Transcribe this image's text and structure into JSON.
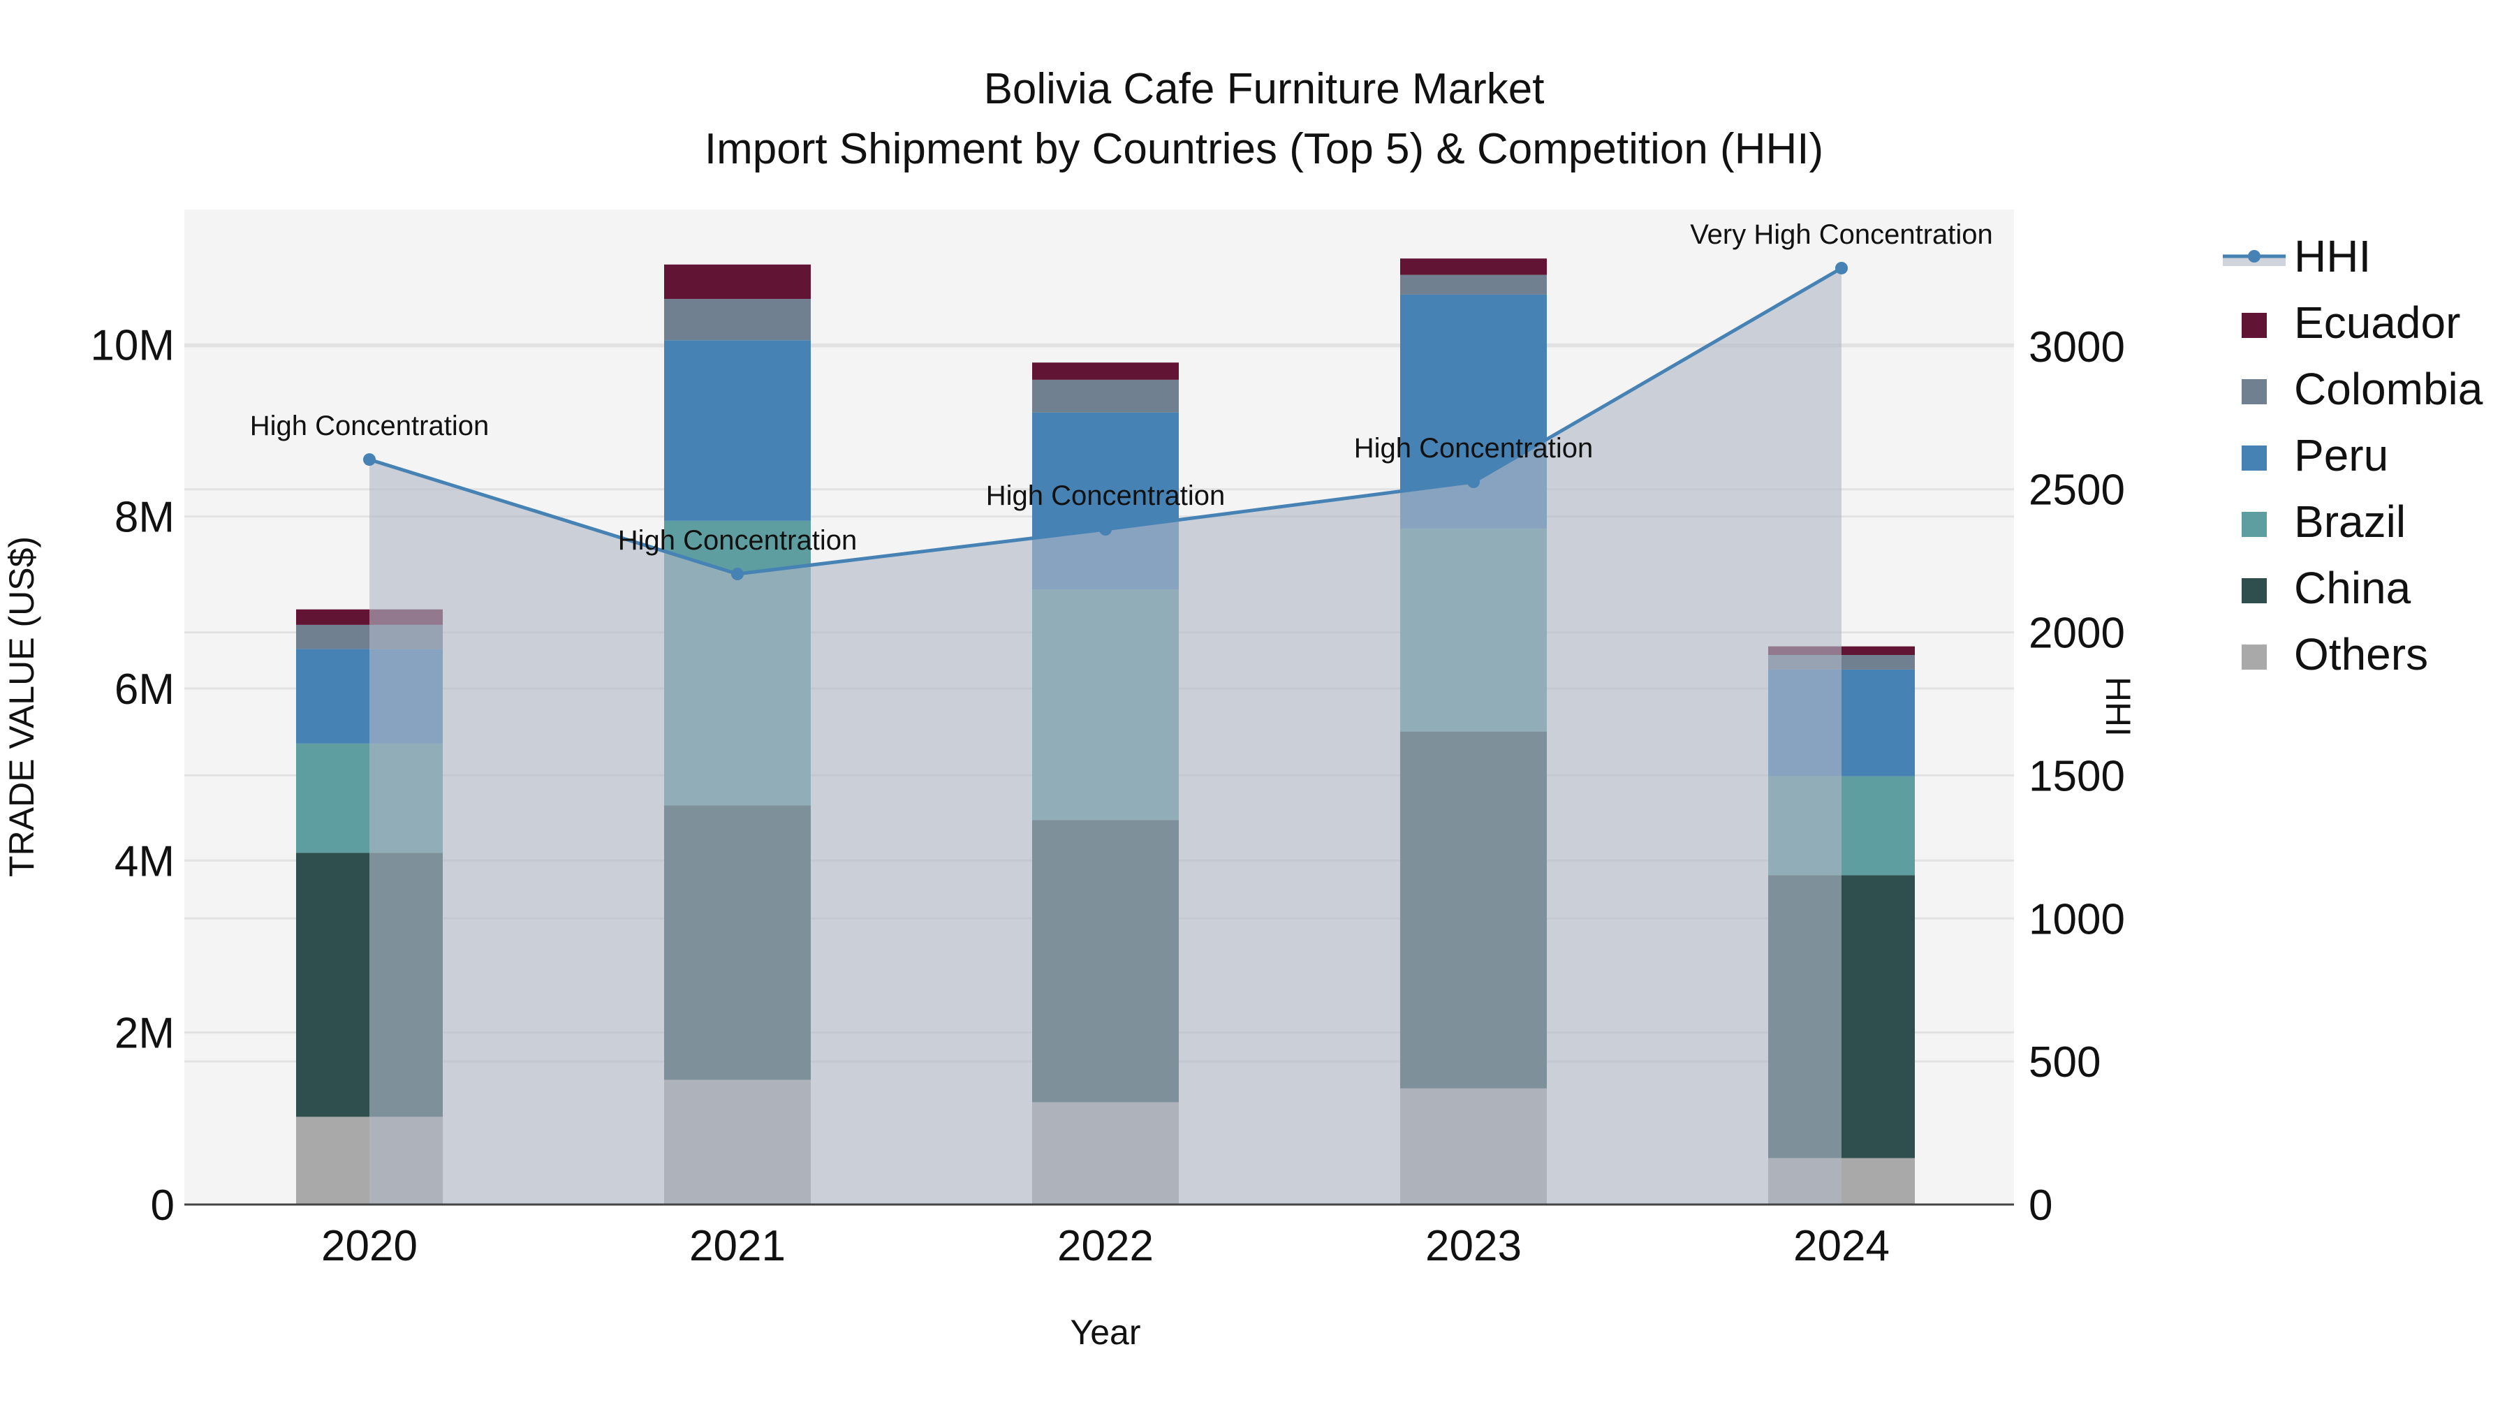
{
  "title": {
    "line1": "Bolivia Cafe Furniture Market",
    "line2": "Import Shipment by Countries (Top 5) & Competition (HHI)"
  },
  "axes": {
    "x_title": "Year",
    "y_left_title": "TRADE VALUE (US$)",
    "y_right_title": "HHI",
    "y_left_ticks": [
      "0",
      "2M",
      "4M",
      "6M",
      "8M",
      "10M"
    ],
    "y_right_ticks": [
      "0",
      "500",
      "1000",
      "1500",
      "2000",
      "2500",
      "3000"
    ]
  },
  "legend": {
    "items": [
      {
        "label": "HHI",
        "type": "line",
        "color": "#4682B4"
      },
      {
        "label": "Ecuador",
        "type": "box",
        "color": "#621434"
      },
      {
        "label": "Colombia",
        "type": "box",
        "color": "#708090"
      },
      {
        "label": "Peru",
        "type": "box",
        "color": "#4682B4"
      },
      {
        "label": "Brazil",
        "type": "box",
        "color": "#5F9EA0"
      },
      {
        "label": "China",
        "type": "box",
        "color": "#2F4F4F"
      },
      {
        "label": "Others",
        "type": "box",
        "color": "#A9A9A9"
      }
    ]
  },
  "colors": {
    "plot_bg": "#F4F4F4",
    "grid": "#E2E2E2",
    "hhi_line": "#4682B4",
    "hhi_fill": "rgba(176,184,198,0.62)",
    "axis_line": "#444444"
  },
  "chart_data": {
    "type": "bar",
    "title": "Bolivia Cafe Furniture Market — Import Shipment by Countries (Top 5) & Competition (HHI)",
    "xlabel": "Year",
    "ylabel": "TRADE VALUE (US$)",
    "y2label": "HHI",
    "categories": [
      "2020",
      "2021",
      "2022",
      "2023",
      "2024"
    ],
    "stacked": true,
    "ylim": [
      0,
      11570000
    ],
    "y2lim": [
      0,
      3478
    ],
    "grid": true,
    "legend_position": "right",
    "series": [
      {
        "name": "Others",
        "color": "#A9A9A9",
        "values": [
          1020000,
          1450000,
          1190000,
          1350000,
          540000
        ]
      },
      {
        "name": "China",
        "color": "#2F4F4F",
        "values": [
          3070000,
          3190000,
          3280000,
          4150000,
          3290000
        ]
      },
      {
        "name": "Brazil",
        "color": "#5F9EA0",
        "values": [
          1270000,
          3310000,
          2680000,
          2360000,
          1150000
        ]
      },
      {
        "name": "Peru",
        "color": "#4682B4",
        "values": [
          1100000,
          2100000,
          2060000,
          2720000,
          1240000
        ]
      },
      {
        "name": "Colombia",
        "color": "#708090",
        "values": [
          280000,
          480000,
          380000,
          230000,
          170000
        ]
      },
      {
        "name": "Ecuador",
        "color": "#621434",
        "values": [
          180000,
          400000,
          200000,
          190000,
          100000
        ]
      }
    ],
    "line_series": {
      "name": "HHI",
      "axis": "right",
      "type": "line+area",
      "color": "#4682B4",
      "values": [
        2604,
        2204,
        2360,
        2526,
        3273
      ],
      "annotations": [
        "High Concentration",
        "High Concentration",
        "High Concentration",
        "High Concentration",
        "Very High Concentration"
      ]
    }
  }
}
